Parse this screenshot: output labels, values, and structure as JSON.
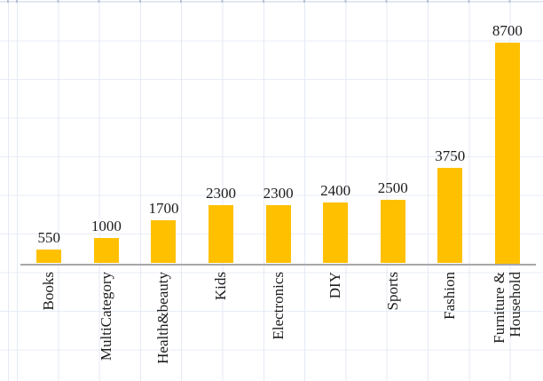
{
  "chart_data": {
    "type": "bar",
    "title": "",
    "xlabel": "",
    "ylabel": "",
    "categories": [
      "Books",
      "MultiCategory",
      "Health&beauty",
      "Kids",
      "Electronics",
      "DIY",
      "Sports",
      "Fashion",
      "Furniture &\nHousehold"
    ],
    "values": [
      550,
      1000,
      1700,
      2300,
      2300,
      2400,
      2500,
      3750,
      8700
    ],
    "data_labels": [
      "550",
      "1000",
      "1700",
      "2300",
      "2300",
      "2400",
      "2500",
      "3750",
      "8700"
    ],
    "ylim": [
      0,
      8700
    ],
    "legend": false,
    "grid": true,
    "y_axis_labels_visible": false,
    "data_labels_position": "above-bar",
    "category_label_rotation_deg": 90,
    "colors": {
      "bar": "#FFC000",
      "axis_line": "#A7A7A7",
      "gridline": "#E4EAF4",
      "label_text": "#1C1C1C",
      "background": "#FFFFFF"
    }
  }
}
